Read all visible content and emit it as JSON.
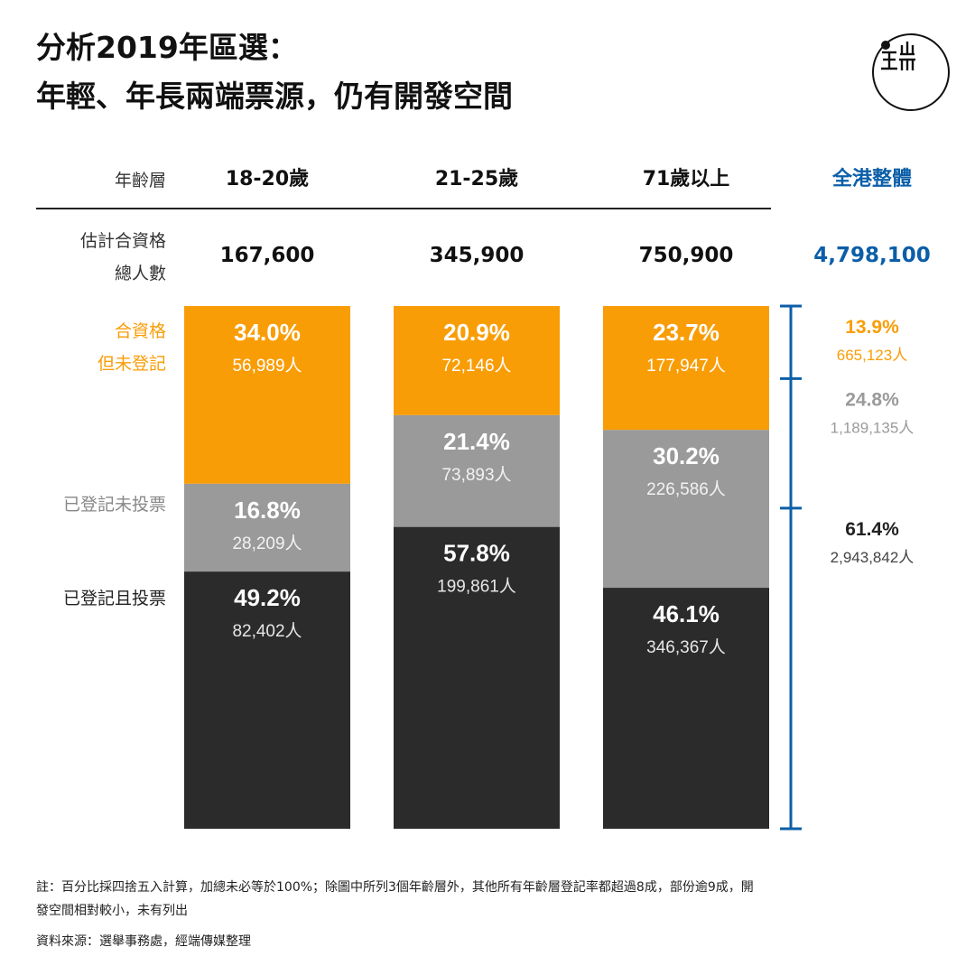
{
  "title_line1": "分析2019年區選：",
  "title_line2": "年輕、年長兩端票源，仍有開發空間",
  "row_labels": {
    "age": "年齡層",
    "total_line1": "估計合資格",
    "total_line2": "總人數"
  },
  "segment_labels": {
    "unregistered_line1": "合資格",
    "unregistered_line2": "但未登記",
    "registered_not_voted": "已登記未投票",
    "voted": "已登記且投票"
  },
  "colors": {
    "unregistered": "#f99d06",
    "registered_not_voted": "#9a9a9a",
    "voted": "#2b2b2b",
    "overall": "#0b5ea8"
  },
  "chart_data": {
    "type": "bar",
    "stacked": true,
    "normalized": true,
    "categories": [
      "18-20歲",
      "21-25歲",
      "71歲以上"
    ],
    "totals": [
      "167,600",
      "345,900",
      "750,900"
    ],
    "series": [
      {
        "key": "unregistered",
        "values": [
          34.0,
          20.9,
          23.7
        ],
        "labels": [
          "34.0%",
          "20.9%",
          "23.7%"
        ],
        "counts": [
          "56,989人",
          "72,146人",
          "177,947人"
        ]
      },
      {
        "key": "registered_not_voted",
        "values": [
          16.8,
          21.4,
          30.2
        ],
        "labels": [
          "16.8%",
          "21.4%",
          "30.2%"
        ],
        "counts": [
          "28,209人",
          "73,893人",
          "226,586人"
        ]
      },
      {
        "key": "voted",
        "values": [
          49.2,
          57.8,
          46.1
        ],
        "labels": [
          "49.2%",
          "57.8%",
          "46.1%"
        ],
        "counts": [
          "82,402人",
          "199,861人",
          "346,367人"
        ]
      }
    ],
    "overall": {
      "label": "全港整體",
      "total": "4,798,100",
      "values": [
        13.9,
        24.8,
        61.4
      ],
      "labels": [
        "13.9%",
        "24.8%",
        "61.4%"
      ],
      "counts": [
        "665,123人",
        "1,189,135人",
        "2,943,842人"
      ]
    },
    "ylim": [
      0,
      100
    ]
  },
  "footnote_line1": "註：百分比採四捨五入計算，加總未必等於100%；除圖中所列3個年齡層外，其他所有年齡層登記率都超過8成，部份逾9成，開",
  "footnote_line2": "發空間相對較小，未有列出",
  "source": "資料來源：選舉事務處，經端傳媒整理"
}
